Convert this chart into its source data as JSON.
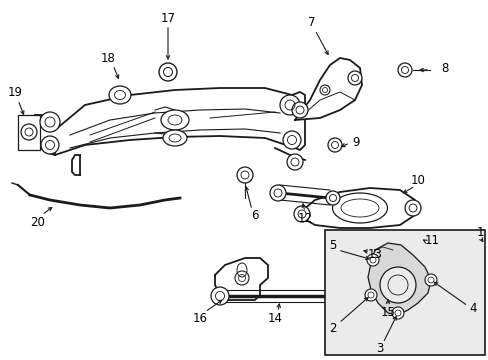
{
  "bg_color": "#ffffff",
  "inset_bg": "#ebebeb",
  "line_color": "#1a1a1a",
  "fig_width": 4.89,
  "fig_height": 3.6,
  "dpi": 100,
  "label_fontsize": 8.5,
  "label_color": "#000000"
}
